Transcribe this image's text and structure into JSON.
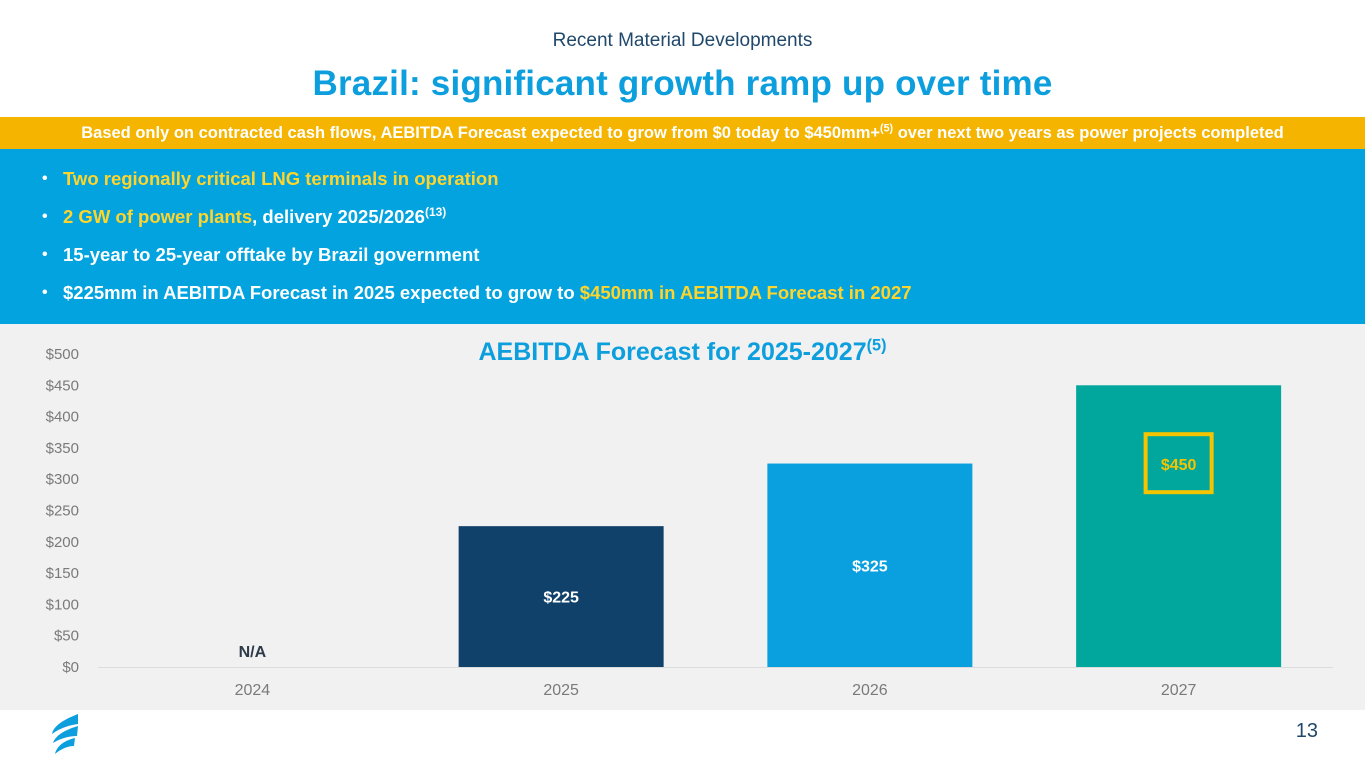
{
  "header": {
    "subtitle": "Recent Material Developments",
    "title": "Brazil: significant growth ramp up over time"
  },
  "banner": {
    "text_pre": "Based only on contracted cash flows, AEBITDA Forecast expected to grow from $0 today to $450mm+",
    "sup": "(5)",
    "text_post": " over next two years as power projects completed"
  },
  "bullets": {
    "b1": "Two regionally critical LNG terminals in operation",
    "b2_highlight": "2 GW of power plants",
    "b2_rest": ", delivery 2025/2026",
    "b2_sup": "(13)",
    "b3": "15-year to 25-year offtake by Brazil government",
    "b4_pre": "$225mm in AEBITDA Forecast in 2025 expected to grow to ",
    "b4_highlight": "$450mm in AEBITDA Forecast in 2027"
  },
  "chart_data": {
    "type": "bar",
    "title": "AEBITDA Forecast for 2025-2027",
    "title_sup": "(5)",
    "categories": [
      "2024",
      "2025",
      "2026",
      "2027"
    ],
    "values": [
      0,
      225,
      325,
      450
    ],
    "labels": [
      "N/A",
      "$225",
      "$325",
      "$450"
    ],
    "bar_colors": [
      "#f1f1f1",
      "#10416a",
      "#0aa0df",
      "#01a79d"
    ],
    "highlighted_index": 3,
    "highlight_color": "#f5c400",
    "label_color_default": "#ffffff",
    "na_label_color": "#2d3a4a",
    "ylim": [
      0,
      500
    ],
    "yticks": [
      0,
      50,
      100,
      150,
      200,
      250,
      300,
      350,
      400,
      450,
      500
    ],
    "ytick_labels": [
      "$0",
      "$50",
      "$100",
      "$150",
      "$200",
      "$250",
      "$300",
      "$350",
      "$400",
      "$450",
      "$500"
    ],
    "xlabel": "",
    "ylabel": ""
  },
  "footer": {
    "logo_icon": "flame-logo-icon",
    "page_number": "13"
  }
}
